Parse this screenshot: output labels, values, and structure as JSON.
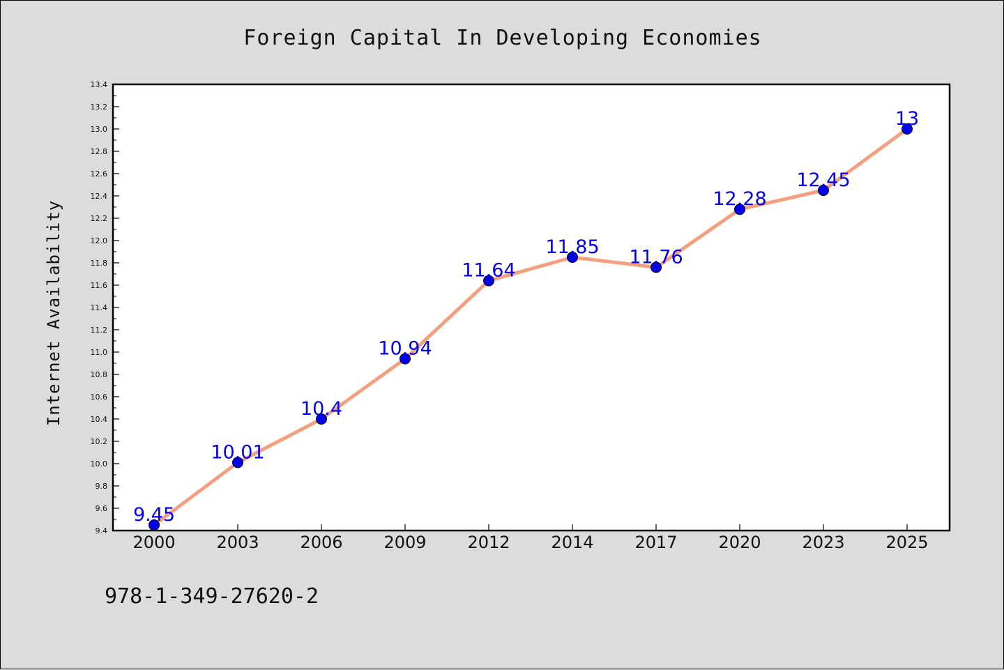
{
  "chart_data": {
    "type": "line",
    "title": "Foreign Capital In Developing Economies",
    "ylabel": "Internet Availability",
    "xlabel": "",
    "categories": [
      "2000",
      "2003",
      "2006",
      "2009",
      "2012",
      "2014",
      "2017",
      "2020",
      "2023",
      "2025"
    ],
    "values": [
      9.45,
      10.01,
      10.4,
      10.94,
      11.64,
      11.85,
      11.76,
      12.28,
      12.45,
      13
    ],
    "data_labels": [
      "9.45",
      "10.01",
      "10.4",
      "10.94",
      "11.64",
      "11.85",
      "11.76",
      "12.28",
      "12.45",
      "13"
    ],
    "ylim": [
      9.4,
      13.4
    ],
    "yticks": [
      "9.4",
      "9.6",
      "9.8",
      "10.0",
      "10.2",
      "10.4",
      "10.6",
      "10.8",
      "11.0",
      "11.2",
      "11.4",
      "11.6",
      "11.8",
      "12.0",
      "12.2",
      "12.4",
      "12.6",
      "12.8",
      "13.0",
      "13.2",
      "13.4"
    ],
    "grid": false,
    "colors": {
      "line": "#f4a07f",
      "marker": "#0000ee",
      "label": "#0000ee",
      "plot_bg": "#ffffff",
      "page_bg": "#dcdcdc"
    }
  },
  "footnote": "978-1-349-27620-2"
}
